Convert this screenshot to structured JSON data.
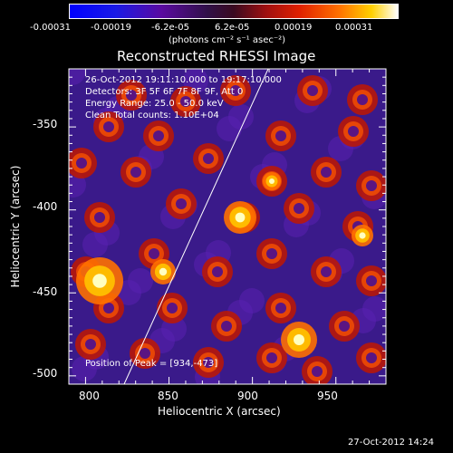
{
  "colorbar": {
    "ticks": [
      "-0.00031",
      "-0.00019",
      "-6.2e-05",
      "6.2e-05",
      "0.00019",
      "0.00031"
    ],
    "units": "(photons cm⁻² s⁻¹ asec⁻²)"
  },
  "plot": {
    "title": "Reconstructed RHESSI Image",
    "xlabel": "Heliocentric X (arcsec)",
    "ylabel": "Heliocentric Y (arcsec)",
    "xticks": [
      "800",
      "850",
      "900",
      "950"
    ],
    "yticks": [
      "-350",
      "-400",
      "-450",
      "-500"
    ],
    "info": [
      "26-Oct-2012 19:11:10.000 to 19:17:10.000",
      "Detectors: 3F 5F 6F 7F 8F 9F, Att 0",
      "Energy Range: 25.0 - 50.0 keV",
      "Clean    Total counts: 1.10E+04"
    ],
    "peak": "Position of Peak = [934,-473]"
  },
  "footer": {
    "timestamp": "27-Oct-2012 14:24"
  }
}
